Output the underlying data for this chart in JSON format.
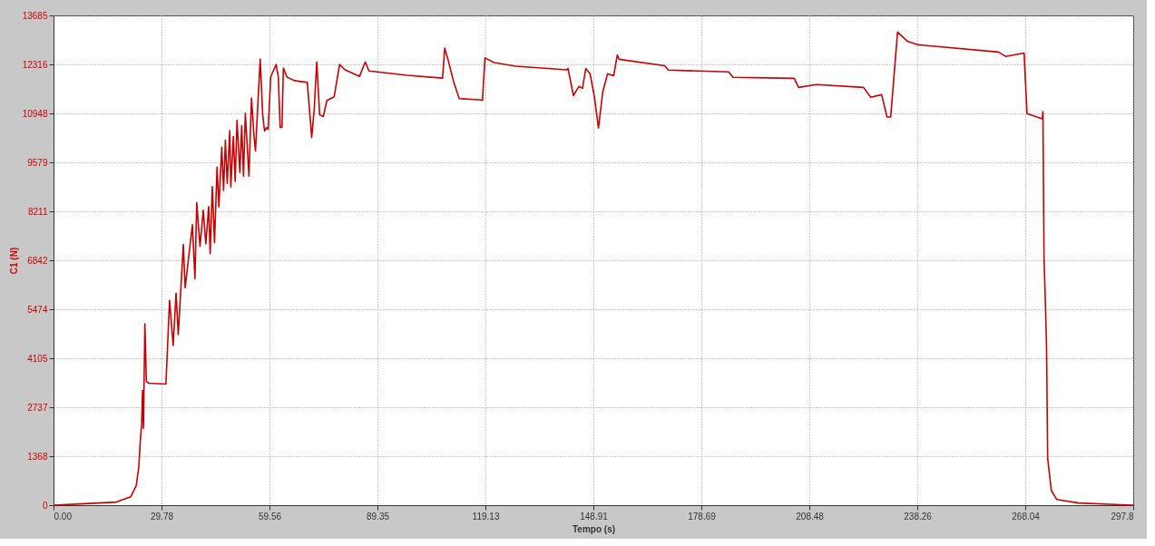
{
  "chart_data": {
    "type": "line",
    "xlabel": "Tempo (s)",
    "ylabel": "C1 (N)",
    "xlim": [
      0,
      297.8
    ],
    "ylim": [
      0,
      13685
    ],
    "xticks": [
      {
        "value": 0,
        "label": "0.00"
      },
      29.78,
      59.56,
      89.35,
      119.13,
      148.91,
      178.69,
      208.48,
      238.26,
      268.04,
      297.8
    ],
    "yticks": [
      0,
      1368,
      2737,
      4105,
      5474,
      6842,
      8211,
      9579,
      10948,
      12316,
      13685
    ],
    "grid": true,
    "marker": "none",
    "line_style": "solid",
    "series": [
      {
        "color": "#cc0000",
        "x": [
          0,
          7.3,
          17.3,
          21.3,
          22.8,
          23.5,
          23.9,
          24.3,
          24.55,
          24.8,
          25.2,
          25.6,
          26.3,
          31.0,
          32.0,
          33.0,
          33.8,
          34.4,
          35.8,
          36.3,
          38.3,
          39.0,
          39.5,
          40.4,
          41.3,
          42.0,
          42.8,
          43.2,
          43.8,
          44.4,
          45.1,
          45.6,
          46.4,
          46.9,
          47.4,
          47.9,
          48.6,
          48.9,
          49.6,
          50.1,
          50.6,
          51.4,
          51.9,
          52.4,
          52.9,
          53.9,
          54.6,
          55.3,
          55.7,
          57.0,
          57.7,
          58.2,
          58.8,
          59.2,
          59.9,
          60.3,
          61.4,
          62.0,
          62.5,
          63.0,
          63.4,
          64.4,
          66.4,
          70.0,
          71.2,
          71.9,
          72.6,
          73.4,
          74.4,
          75.4,
          77.4,
          78.9,
          80.4,
          84.4,
          86.0,
          87.0,
          97.5,
          107.3,
          107.9,
          108.9,
          110.4,
          111.9,
          117.5,
          118.3,
          119.0,
          121.5,
          127.5,
          141.6,
          141.9,
          143.4,
          144.9,
          145.9,
          146.8,
          148.0,
          149.2,
          150.3,
          151.5,
          152.8,
          154.5,
          155.5,
          156.0,
          168.6,
          169.6,
          186.2,
          187.4,
          204.3,
          205.5,
          210.4,
          223.4,
          225.4,
          228.4,
          229.9,
          230.9,
          232.8,
          235.5,
          238.5,
          260.6,
          262.6,
          267.7,
          268.5,
          272.7,
          272.9,
          273.2,
          273.5,
          273.9,
          274.2,
          275.2,
          276.7,
          282.8,
          292.8,
          297.8
        ],
        "values": [
          0,
          35,
          86,
          237,
          540,
          1043,
          1746,
          2249,
          3206,
          2150,
          5068,
          3458,
          3408,
          3383,
          5723,
          4464,
          5924,
          4767,
          7282,
          6074,
          7837,
          6328,
          8459,
          7233,
          8240,
          7300,
          8340,
          7030,
          8900,
          7334,
          9447,
          8340,
          10000,
          8794,
          10202,
          8993,
          10463,
          8893,
          10300,
          9045,
          10754,
          9297,
          10604,
          9196,
          10956,
          9196,
          11378,
          10300,
          9899,
          12466,
          10900,
          10453,
          10550,
          10500,
          11963,
          12064,
          12315,
          11963,
          10554,
          10554,
          12214,
          11963,
          11863,
          11813,
          10273,
          11058,
          12386,
          10907,
          10857,
          11310,
          11411,
          12315,
          12164,
          11983,
          12386,
          12134,
          12013,
          11933,
          12769,
          12416,
          11813,
          11360,
          11330,
          11310,
          12497,
          12366,
          12265,
          12164,
          12206,
          11448,
          11700,
          11650,
          12200,
          12050,
          11400,
          10539,
          11550,
          12053,
          12003,
          12579,
          12458,
          12278,
          12157,
          12107,
          11957,
          11926,
          11673,
          11754,
          11673,
          11400,
          11471,
          10845,
          10845,
          13218,
          12965,
          12864,
          12662,
          12540,
          12632,
          10944,
          10793,
          10995,
          6880,
          5920,
          4376,
          1320,
          412,
          160,
          60,
          20,
          0
        ]
      }
    ]
  }
}
